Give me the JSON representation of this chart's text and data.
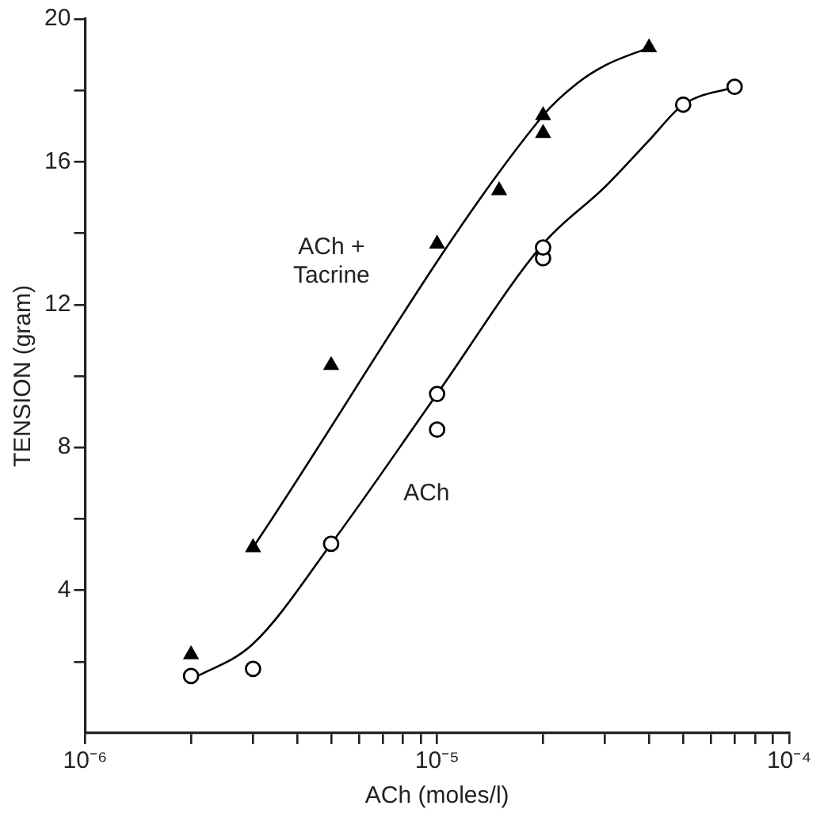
{
  "chart_data": {
    "type": "scatter",
    "xlabel": "ACh (moles/l)",
    "ylabel": "TENSION (gram)",
    "log": "x",
    "grid": false,
    "legend": false,
    "xlim": [
      1e-06,
      0.0001
    ],
    "ylim": [
      0,
      20
    ],
    "xticks": [
      {
        "value": 1e-06,
        "label": "10⁻⁶"
      },
      {
        "value": 2e-06,
        "label": null
      },
      {
        "value": 3e-06,
        "label": null
      },
      {
        "value": 4e-06,
        "label": null
      },
      {
        "value": 5e-06,
        "label": null
      },
      {
        "value": 6e-06,
        "label": null
      },
      {
        "value": 7e-06,
        "label": null
      },
      {
        "value": 8e-06,
        "label": null
      },
      {
        "value": 9e-06,
        "label": null
      },
      {
        "value": 1e-05,
        "label": "10⁻⁵"
      },
      {
        "value": 2e-05,
        "label": null
      },
      {
        "value": 3e-05,
        "label": null
      },
      {
        "value": 4e-05,
        "label": null
      },
      {
        "value": 5e-05,
        "label": null
      },
      {
        "value": 6e-05,
        "label": null
      },
      {
        "value": 7e-05,
        "label": null
      },
      {
        "value": 8e-05,
        "label": null
      },
      {
        "value": 9e-05,
        "label": null
      },
      {
        "value": 0.0001,
        "label": "10⁻⁴"
      }
    ],
    "yticks": [
      {
        "value": 2,
        "label": null
      },
      4,
      {
        "value": 6,
        "label": null
      },
      8,
      {
        "value": 10,
        "label": null
      },
      12,
      {
        "value": 14,
        "label": null
      },
      16,
      {
        "value": 18,
        "label": null
      },
      20
    ],
    "series": [
      {
        "type": "scatter",
        "marker": "triangle",
        "color": "#000000",
        "x": [
          2e-06,
          3e-06,
          5e-06,
          1e-05,
          1.5e-05,
          2e-05,
          2e-05,
          4e-05
        ],
        "values": [
          2.2,
          5.2,
          10.3,
          13.7,
          15.2,
          16.8,
          17.3,
          19.2
        ]
      },
      {
        "type": "scatter",
        "marker": "circle",
        "color": "#000000",
        "x": [
          2e-06,
          3e-06,
          5e-06,
          1e-05,
          1e-05,
          2e-05,
          2e-05,
          5e-05,
          7e-05
        ],
        "values": [
          1.6,
          1.8,
          5.3,
          8.5,
          9.5,
          13.3,
          13.6,
          17.6,
          18.1
        ]
      },
      {
        "type": "line",
        "marker": "none",
        "color": "#000000",
        "x": [
          3e-06,
          2e-05,
          2.5e-05,
          3e-05,
          4e-05
        ],
        "values": [
          5.2,
          17.3,
          18.2,
          18.7,
          19.2
        ]
      },
      {
        "type": "line",
        "marker": "none",
        "color": "#000000",
        "x": [
          2e-06,
          3e-06,
          5e-06,
          1e-05,
          2e-05,
          3e-05,
          4e-05,
          5e-05,
          7e-05
        ],
        "values": [
          1.5,
          2.5,
          5.3,
          9.5,
          13.7,
          15.3,
          16.6,
          17.6,
          18.1
        ]
      }
    ],
    "annotations": [
      "ACh +\nTacrine",
      "ACh"
    ]
  }
}
